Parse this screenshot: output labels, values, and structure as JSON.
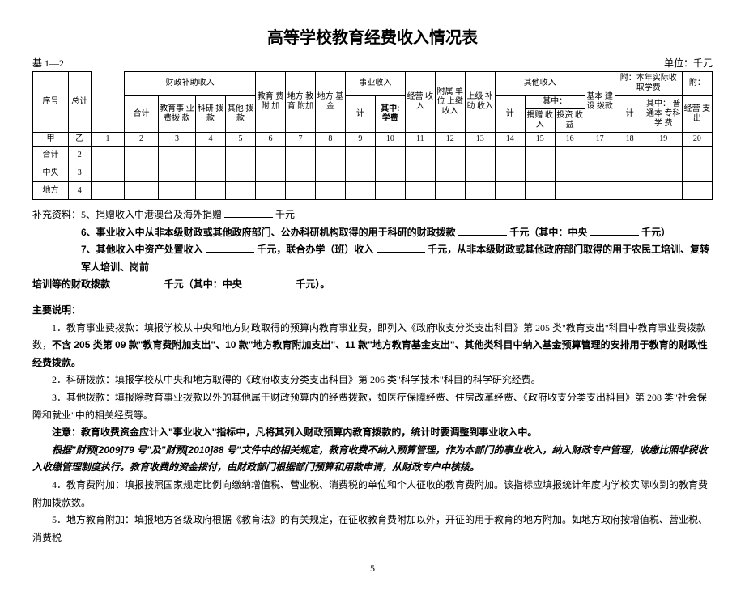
{
  "title": "高等学校教育经费收入情况表",
  "header": {
    "left": "基 1—2",
    "right": "单位：千元"
  },
  "table": {
    "top": {
      "xuhao": "序号",
      "zongji": "总计",
      "czbz": "财政补助收入",
      "heji": "合计",
      "jysy": "教育事\n业费拨\n款",
      "kyb": "科研\n拨款",
      "qtbk": "其他\n拨款",
      "jyfj": "教育\n费附\n加",
      "dfjyfj": "地方\n教育\n附加",
      "dfjj": "地方\n基金",
      "sysr": "事业收入",
      "ji1": "计",
      "qzxf": "其中:\n学费",
      "jysr": "经营\n收入",
      "fsdw": "附属\n单位\n上缴\n收入",
      "sjbz": "上级\n补助\n收入",
      "qtsr": "其他收入",
      "ji2": "计",
      "qz": "其中：",
      "jzsr": "捐赠\n收入",
      "tzsy": "投资\n收益",
      "jbjs": "基本\n建设\n拨款",
      "fbn": "附：本年实际收\n取学费",
      "ji3": "计",
      "ptbzk": "其中：\n普通本\n专科学\n费",
      "f": "附：",
      "jyzc": "经营\n支出"
    },
    "rowIndex": {
      "jia": "甲",
      "yi": "乙",
      "c1": "1",
      "c2": "2",
      "c3": "3",
      "c4": "4",
      "c5": "5",
      "c6": "6",
      "c7": "7",
      "c8": "8",
      "c9": "9",
      "c10": "10",
      "c11": "11",
      "c12": "12",
      "c13": "13",
      "c14": "14",
      "c15": "15",
      "c16": "16",
      "c17": "17",
      "c18": "18",
      "c19": "19",
      "c20": "20"
    },
    "rows": [
      {
        "label": "合计",
        "num": "2"
      },
      {
        "label": "中央",
        "num": "3"
      },
      {
        "label": "地方",
        "num": "4"
      }
    ]
  },
  "supplement": {
    "line5_a": "补充资料：5、捐赠收入中港澳台及海外捐赠",
    "line5_b": "千元",
    "line6_a": "6、事业收入中从非本级财政或其他政府部门、公办科研机构取得的用于科研的财政拨款",
    "line6_b": "千元（其中：中央",
    "line6_c": "千元）",
    "line7_a": "7、其他收入中资产处置收入",
    "line7_b": "千元，联合办学（班）收入",
    "line7_c": "千元，从非本级财政或其他政府部门取得的用于农民工培训、复转军人培训、岗前",
    "line7_d": "培训等的财政拨款",
    "line7_e": "千元（其中：中央",
    "line7_f": "千元）。"
  },
  "explain": {
    "heading": "主要说明：",
    "p1a": "1．教育事业费拨款：填报学校从中央和地方财政取得的预算内教育事业费，即列入《政府收支分类支出科目》第 205 类\"教育支出\"科目中教育事业费拨款数，",
    "p1b": "不含 205 类第 09 款\"教育费附加支出\"、10 款\"地方教育附加支出\"、11 款\"地方教育基金支出\"、其他类科目中纳入基金预算管理的安排用于教育的财政性经费拨款。",
    "p2": "2．科研拨款：填报学校从中央和地方取得的《政府收支分类支出科目》第 206 类\"科学技术\"科目的科学研究经费。",
    "p3": "3．其他拨款：填报除教育事业拨款以外的其他属于财政预算内的经费拨款，如医疗保障经费、住房改革经费、《政府收支分类支出科目》第 208 类\"社会保障和就业\"中的相关经费等。",
    "p4": "注意：教育收费资金应计入\"事业收入\"指标中，凡将其列入财政预算内教育拨款的，统计时要调整到事业收入中。",
    "p5": "根据\"财预[2009]79 号\"及\"财预[2010]88 号\"文件中的相关规定，教育收费不纳入预算管理，作为本部门的事业收入，纳入财政专户管理，收缴比照非税收入收缴管理制度执行。教育收费的资金拨付，由财政部门根据部门预算和用款申请，从财政专户中核拨。",
    "p6": "4．教育费附加：填报按照国家规定比例向缴纳增值税、营业税、消费税的单位和个人征收的教育费附加。该指标应填报统计年度内学校实际收到的教育费附加拨款数。",
    "p7": "5．地方教育附加：填报地方各级政府根据《教育法》的有关规定，在征收教育费附加以外，开征的用于教育的地方附加。如地方政府按增值税、营业税、消费税一"
  },
  "pageNumber": "5"
}
